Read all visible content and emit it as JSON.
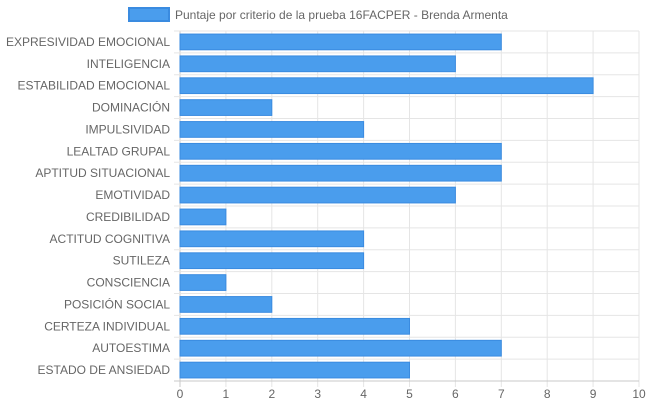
{
  "chart_data": {
    "type": "bar",
    "orientation": "horizontal",
    "categories": [
      "EXPRESIVIDAD EMOCIONAL",
      "INTELIGENCIA",
      "ESTABILIDAD EMOCIONAL",
      "DOMINACIÓN",
      "IMPULSIVIDAD",
      "LEALTAD GRUPAL",
      "APTITUD SITUACIONAL",
      "EMOTIVIDAD",
      "CREDIBILIDAD",
      "ACTITUD COGNITIVA",
      "SUTILEZA",
      "CONSCIENCIA",
      "POSICIÓN SOCIAL",
      "CERTEZA INDIVIDUAL",
      "AUTOESTIMA",
      "ESTADO DE ANSIEDAD"
    ],
    "series": [
      {
        "name": "Puntaje por criterio de la prueba 16FACPER - Brenda Armenta",
        "values": [
          7,
          6,
          9,
          2,
          4,
          7,
          7,
          6,
          1,
          4,
          4,
          1,
          2,
          5,
          7,
          5
        ]
      }
    ],
    "xlim": [
      0,
      10
    ],
    "xticks": [
      "0",
      "1",
      "2",
      "3",
      "4",
      "5",
      "6",
      "7",
      "8",
      "9",
      "10"
    ],
    "grid": true,
    "legend_position": "top",
    "colors": {
      "bar_fill": "#4a9ded",
      "bar_stroke": "#3a8be0",
      "grid": "#e5e5e5",
      "axis": "#c8c8c8"
    }
  }
}
